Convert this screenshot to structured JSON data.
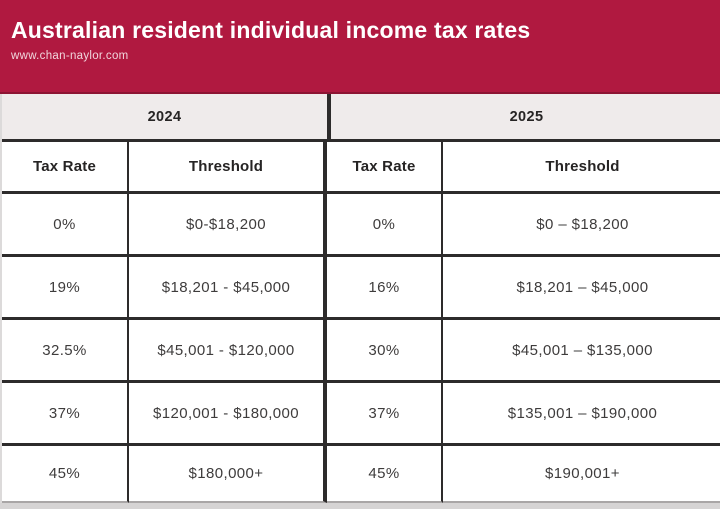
{
  "banner": {
    "title": "Australian resident individual income tax rates",
    "website": "www.chan-naylor.com"
  },
  "colors": {
    "banner_bg": "#b01940",
    "banner_edge": "#8c1433",
    "year_band_bg": "#efebeb",
    "grid_line": "#2d2b2b",
    "cell_text": "#3e3c3c",
    "header_text": "#262424",
    "cutoff_strip": "#d6d4d4"
  },
  "table": {
    "col_headers": [
      "Tax Rate",
      "Threshold"
    ],
    "years": [
      {
        "label": "2024",
        "rows": [
          {
            "rate": "0%",
            "threshold": "$0-$18,200"
          },
          {
            "rate": "19%",
            "threshold": "$18,201 - $45,000"
          },
          {
            "rate": "32.5%",
            "threshold": "$45,001 - $120,000"
          },
          {
            "rate": "37%",
            "threshold": "$120,001 - $180,000"
          },
          {
            "rate": "45%",
            "threshold": "$180,000+"
          }
        ]
      },
      {
        "label": "2025",
        "rows": [
          {
            "rate": "0%",
            "threshold": "$0 – $18,200"
          },
          {
            "rate": "16%",
            "threshold": "$18,201 – $45,000"
          },
          {
            "rate": "30%",
            "threshold": "$45,001 – $135,000"
          },
          {
            "rate": "37%",
            "threshold": "$135,001 – $190,000"
          },
          {
            "rate": "45%",
            "threshold": "$190,001+"
          }
        ]
      }
    ]
  },
  "chart_data": {
    "type": "table",
    "title": "Australian resident individual income tax rates",
    "source": "www.chan-naylor.com",
    "columns": [
      "2024 Tax Rate",
      "2024 Threshold",
      "2025 Tax Rate",
      "2025 Threshold"
    ],
    "rows": [
      [
        "0%",
        "$0-$18,200",
        "0%",
        "$0 – $18,200"
      ],
      [
        "19%",
        "$18,201 - $45,000",
        "16%",
        "$18,201 – $45,000"
      ],
      [
        "32.5%",
        "$45,001 - $120,000",
        "30%",
        "$45,001 – $135,000"
      ],
      [
        "37%",
        "$120,001 - $180,000",
        "37%",
        "$135,001 – $190,000"
      ],
      [
        "45%",
        "$180,000+",
        "45%",
        "$190,001+"
      ]
    ]
  }
}
